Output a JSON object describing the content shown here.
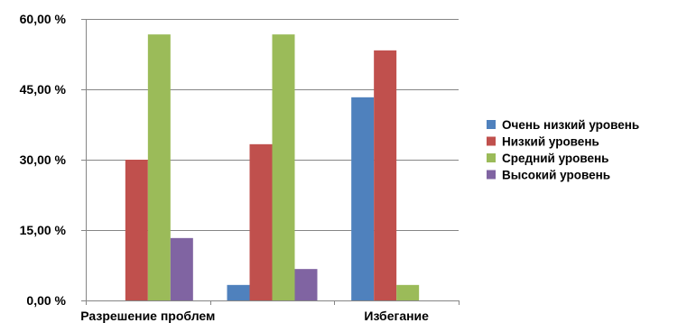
{
  "chart_data": {
    "type": "bar",
    "categories": [
      "Разрешение проблем",
      "",
      "Избегание"
    ],
    "series": [
      {
        "name": "Очень низкий уровень",
        "color": "#4F81BD",
        "values": [
          0,
          3.3,
          43.3
        ]
      },
      {
        "name": "Низкий уровень",
        "color": "#C0504D",
        "values": [
          30.0,
          33.3,
          53.3
        ]
      },
      {
        "name": "Средний уровень",
        "color": "#9BBB59",
        "values": [
          56.7,
          56.7,
          3.3
        ]
      },
      {
        "name": "Высокий уровень",
        "color": "#8064A2",
        "values": [
          13.3,
          6.7,
          0
        ]
      }
    ],
    "yticks": [
      "0,00 %",
      "15,00 %",
      "30,00 %",
      "45,00 %",
      "60,00 %"
    ],
    "ytick_values": [
      0,
      15,
      30,
      45,
      60
    ],
    "ylim": [
      0,
      60
    ],
    "grid": true,
    "legend_position": "right"
  }
}
